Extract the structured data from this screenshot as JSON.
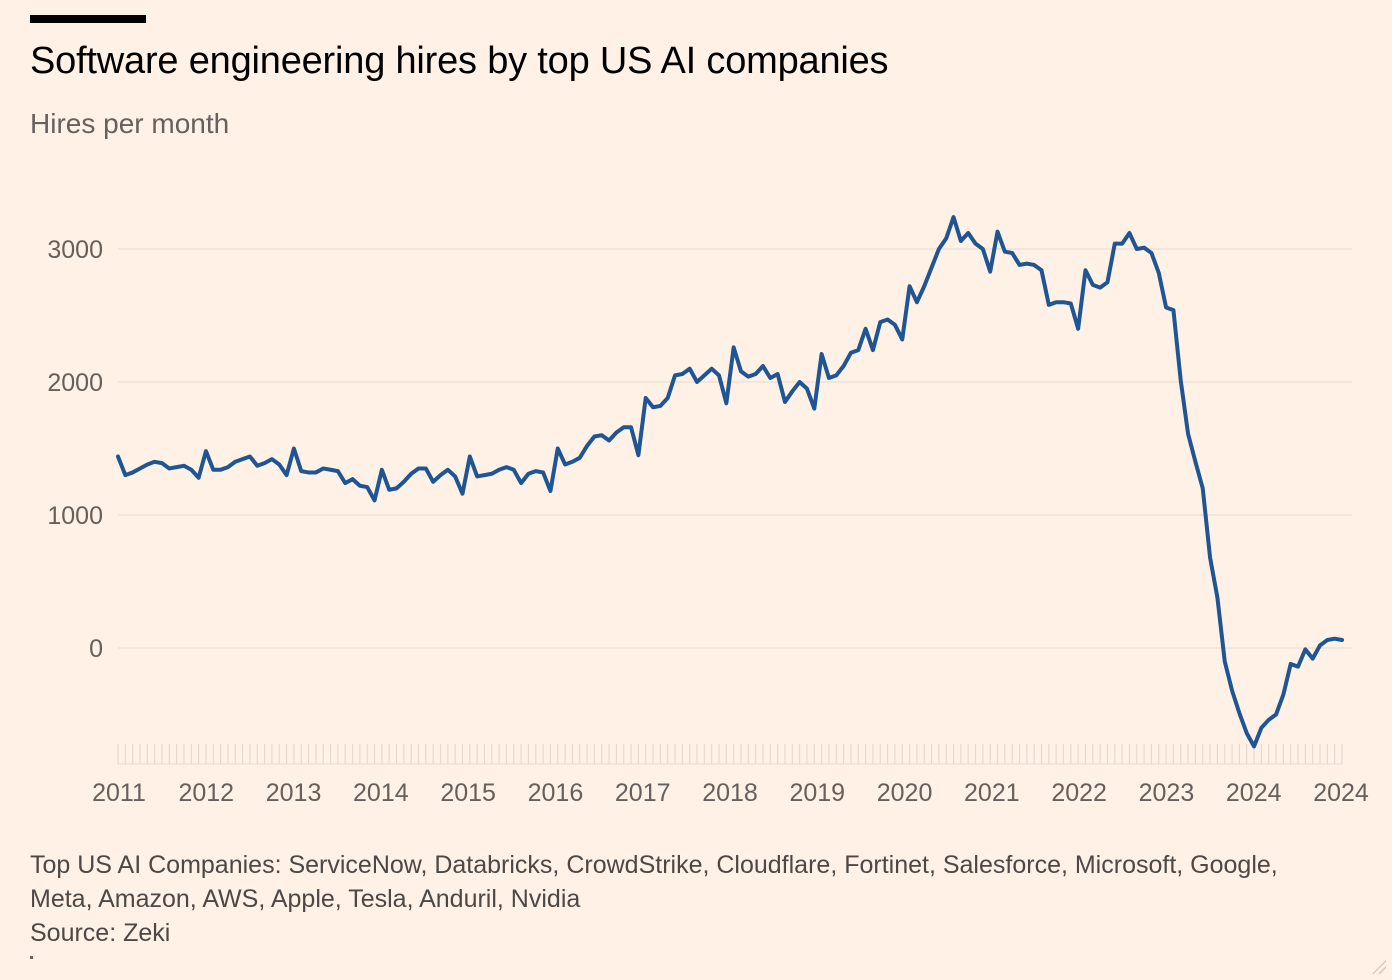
{
  "title": "Software engineering hires by top US AI companies",
  "subtitle": "Hires per month",
  "footer": {
    "line1": "Top US AI Companies: ServiceNow, Databricks, CrowdStrike, Cloudflare, Fortinet, Salesforce, Microsoft, Google,",
    "line2": "Meta, Amazon, AWS, Apple, Tesla, Anduril, Nvidia",
    "source": "Source: Zeki"
  },
  "colors": {
    "background": "#FFF1E5",
    "line": "#1F5593",
    "gridline": "#EDE2D8",
    "axis_text": "#66605C"
  },
  "chart_data": {
    "type": "line",
    "title": "Software engineering hires by top US AI companies",
    "ylabel": "Hires per month",
    "xlabel": "",
    "ylim": [
      -750,
      3250
    ],
    "yticks": [
      0,
      1000,
      2000,
      3000
    ],
    "ytick_labels": [
      "0",
      "1000",
      "2000",
      "3000"
    ],
    "xtick_labels": [
      "2011",
      "2012",
      "2013",
      "2014",
      "2015",
      "2016",
      "2017",
      "2018",
      "2019",
      "2020",
      "2021",
      "2022",
      "2023",
      "2024",
      "2024"
    ],
    "grid": true,
    "series": [
      {
        "values": [
          1440,
          1300,
          1320,
          1350,
          1380,
          1400,
          1390,
          1350,
          1360,
          1370,
          1340,
          1280,
          1480,
          1340,
          1340,
          1360,
          1400,
          1420,
          1440,
          1370,
          1390,
          1420,
          1380,
          1300,
          1500,
          1330,
          1320,
          1320,
          1350,
          1340,
          1330,
          1240,
          1270,
          1220,
          1210,
          1110,
          1340,
          1190,
          1200,
          1250,
          1310,
          1350,
          1350,
          1250,
          1300,
          1340,
          1290,
          1160,
          1440,
          1290,
          1300,
          1310,
          1340,
          1360,
          1340,
          1240,
          1310,
          1330,
          1320,
          1180,
          1500,
          1380,
          1400,
          1430,
          1520,
          1590,
          1600,
          1560,
          1620,
          1660,
          1660,
          1450,
          1880,
          1810,
          1820,
          1880,
          2050,
          2060,
          2100,
          2000,
          2050,
          2100,
          2050,
          1840,
          2260,
          2080,
          2040,
          2060,
          2120,
          2030,
          2060,
          1850,
          1930,
          2000,
          1950,
          1800,
          2210,
          2030,
          2050,
          2120,
          2220,
          2240,
          2400,
          2240,
          2450,
          2470,
          2430,
          2320,
          2720,
          2600,
          2720,
          2860,
          3000,
          3080,
          3240,
          3060,
          3120,
          3040,
          3000,
          2830,
          3130,
          2980,
          2970,
          2880,
          2890,
          2880,
          2840,
          2580,
          2600,
          2600,
          2590,
          2400,
          2840,
          2730,
          2710,
          2750,
          3040,
          3040,
          3120,
          3000,
          3010,
          2970,
          2820,
          2560,
          2540,
          2010,
          1610,
          1400,
          1200,
          680,
          380,
          -100,
          -320,
          -490,
          -640,
          -740,
          -600,
          -540,
          -500,
          -350,
          -120,
          -140,
          -10,
          -80,
          20,
          60,
          70,
          60
        ]
      }
    ]
  }
}
